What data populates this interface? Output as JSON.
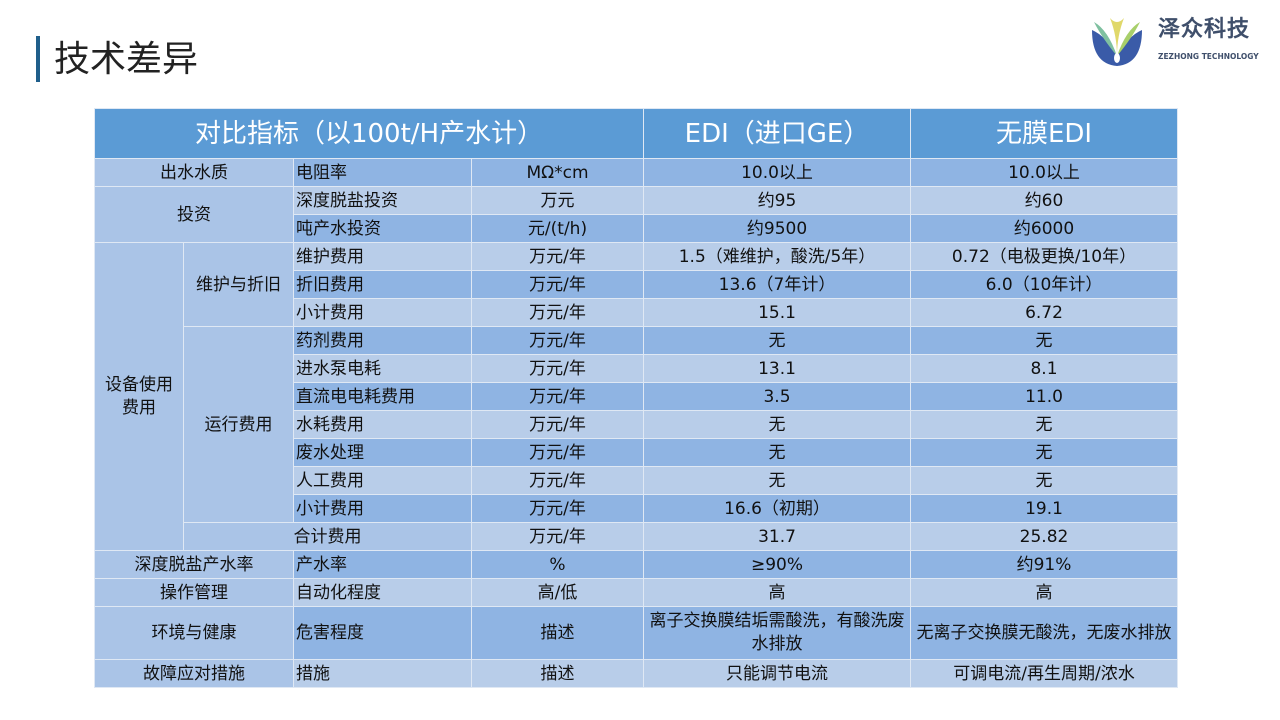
{
  "title": "技术差异",
  "logo": {
    "cn": "泽众科技",
    "en": "ZEZHONG TECHNOLOGY"
  },
  "header": [
    "对比指标（以100t/H产水计）",
    "EDI（进口GE）",
    "无膜EDI"
  ],
  "groups": {
    "water": "出水水质",
    "invest": "投资",
    "equip": "设备使用费用",
    "maint": "维护与折旧",
    "run": "运行费用",
    "total": "合计费用",
    "rate": "深度脱盐产水率",
    "op": "操作管理",
    "env": "环境与健康",
    "fault": "故障应对措施"
  },
  "rows": [
    [
      "电阻率",
      "MΩ*cm",
      "10.0以上",
      "10.0以上"
    ],
    [
      "深度脱盐投资",
      "万元",
      "约95",
      "约60"
    ],
    [
      "吨产水投资",
      "元/(t/h)",
      "约9500",
      "约6000"
    ],
    [
      "维护费用",
      "万元/年",
      "1.5（难维护，酸洗/5年）",
      "0.72（电极更换/10年）"
    ],
    [
      "折旧费用",
      "万元/年",
      "13.6（7年计）",
      "6.0（10年计）"
    ],
    [
      "小计费用",
      "万元/年",
      "15.1",
      "6.72"
    ],
    [
      "药剂费用",
      "万元/年",
      "无",
      "无"
    ],
    [
      "进水泵电耗",
      "万元/年",
      "13.1",
      "8.1"
    ],
    [
      "直流电电耗费用",
      "万元/年",
      "3.5",
      "11.0"
    ],
    [
      "水耗费用",
      "万元/年",
      "无",
      "无"
    ],
    [
      "废水处理",
      "万元/年",
      "无",
      "无"
    ],
    [
      "人工费用",
      "万元/年",
      "无",
      "无"
    ],
    [
      "小计费用",
      "万元/年",
      "16.6（初期）",
      "19.1"
    ],
    [
      "",
      "万元/年",
      "31.7",
      "25.82"
    ],
    [
      "产水率",
      "%",
      "≥90%",
      "约91%"
    ],
    [
      "自动化程度",
      "高/低",
      "高",
      "高"
    ],
    [
      "危害程度",
      "描述",
      "离子交换膜结垢需酸洗，有酸洗废水排放",
      "无离子交换膜无酸洗，无废水排放"
    ],
    [
      "措施",
      "描述",
      "只能调节电流",
      "可调电流/再生周期/浓水"
    ]
  ]
}
